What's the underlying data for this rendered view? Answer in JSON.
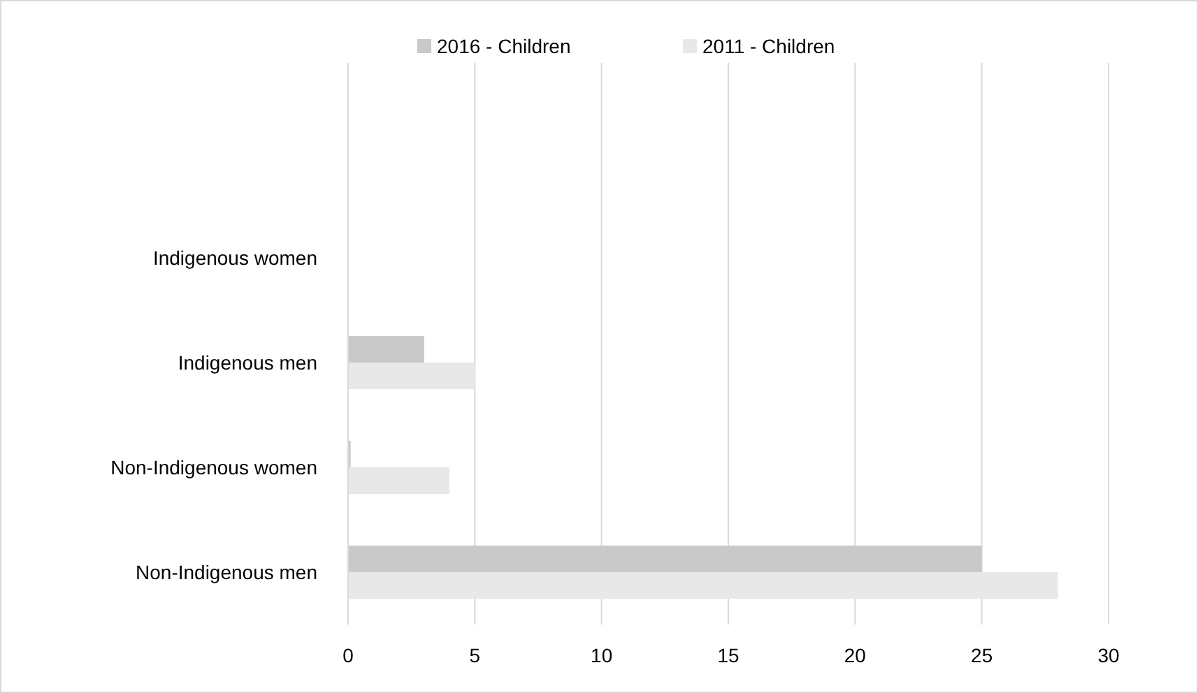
{
  "chart_data": {
    "type": "bar",
    "orientation": "horizontal",
    "categories": [
      "Indigenous women",
      "Indigenous men",
      "Non-Indigenous women",
      "Non-Indigenous men"
    ],
    "series": [
      {
        "name": "2016 - Children",
        "color": "#c9c9c9",
        "values": [
          0,
          3,
          0.1,
          25
        ]
      },
      {
        "name": "2011 - Children",
        "color": "#e8e8e8",
        "values": [
          0,
          5,
          4,
          28
        ]
      }
    ],
    "xlim": [
      0,
      30
    ],
    "xticks": [
      0,
      5,
      10,
      15,
      20,
      25,
      30
    ],
    "grid": "x",
    "legend": "top"
  }
}
